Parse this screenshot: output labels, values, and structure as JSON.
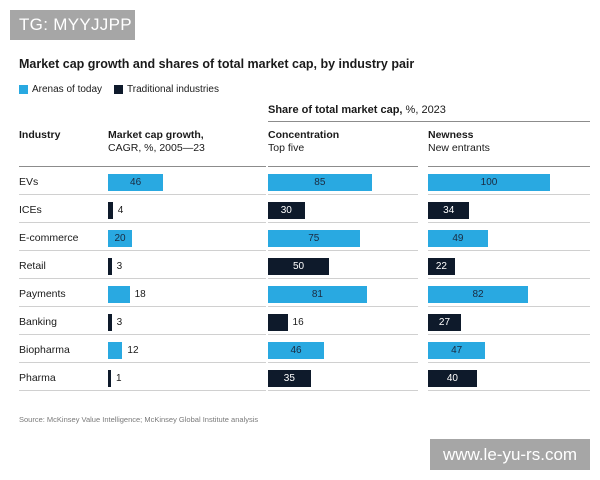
{
  "watermark_top": "TG: MYYJJPP",
  "watermark_bottom": "www.le-yu-rs.com",
  "chart_data": {
    "type": "bar",
    "title": "Market cap growth and shares of total market cap, by industry pair",
    "legend": [
      "Arenas of today",
      "Traditional industries"
    ],
    "colors": {
      "Arenas of today": "#29a9e1",
      "Traditional industries": "#0e1a2b"
    },
    "share_header_bold": "Share of total market cap,",
    "share_header_rest": " %, 2023",
    "industry_header": "Industry",
    "categories": [
      "EVs",
      "ICEs",
      "E-commerce",
      "Retail",
      "Payments",
      "Banking",
      "Biopharma",
      "Pharma"
    ],
    "group": [
      "Arenas of today",
      "Traditional industries",
      "Arenas of today",
      "Traditional industries",
      "Arenas of today",
      "Traditional industries",
      "Arenas of today",
      "Traditional industries"
    ],
    "series": [
      {
        "name": "Market cap growth, CAGR, %, 2005—23",
        "head": "Market cap growth,",
        "sub": "CAGR, %, 2005—23",
        "values": [
          46,
          4,
          20,
          3,
          18,
          3,
          12,
          1
        ]
      },
      {
        "name": "Concentration, Top five",
        "head": "Concentration",
        "sub": "Top five",
        "values": [
          85,
          30,
          75,
          50,
          81,
          16,
          46,
          35
        ]
      },
      {
        "name": "Newness, New entrants",
        "head": "Newness",
        "sub": "New entrants",
        "values": [
          100,
          34,
          49,
          22,
          82,
          27,
          47,
          40
        ]
      }
    ],
    "source": "Source: McKinsey Value Intelligence; McKinsey Global Institute analysis"
  }
}
